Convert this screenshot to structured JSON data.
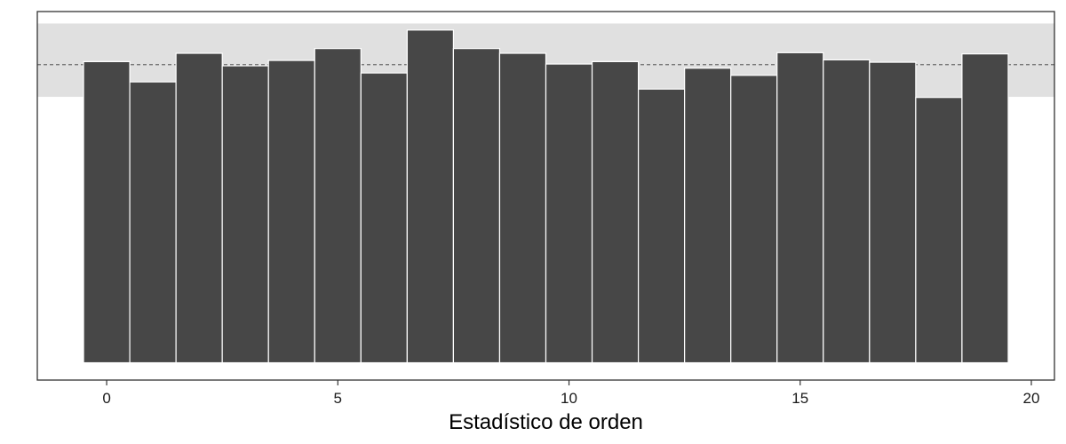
{
  "chart_data": {
    "type": "bar",
    "title": "",
    "xlabel": "Estadístico de orden",
    "ylabel": "",
    "x": [
      0,
      1,
      2,
      3,
      4,
      5,
      6,
      7,
      8,
      9,
      10,
      11,
      12,
      13,
      14,
      15,
      16,
      17,
      18,
      19
    ],
    "values": [
      50.5,
      47.1,
      51.9,
      49.8,
      50.7,
      52.7,
      48.6,
      55.8,
      52.7,
      51.9,
      50.1,
      50.5,
      45.9,
      49.4,
      48.2,
      52.0,
      50.8,
      50.4,
      44.5,
      51.8
    ],
    "xlim": [
      -1.5,
      20.5
    ],
    "ylim": [
      -2.9,
      58.9
    ],
    "xticks": [
      0,
      5,
      10,
      15,
      20
    ],
    "reference_line": 50,
    "confidence_band": [
      44.6,
      56.9
    ],
    "grid": false,
    "colors": {
      "bar_fill": "#474747",
      "bar_stroke": "#ffffff",
      "band": "#e0e0e0",
      "reference_line": "#666666",
      "panel_border": "#333333"
    }
  }
}
